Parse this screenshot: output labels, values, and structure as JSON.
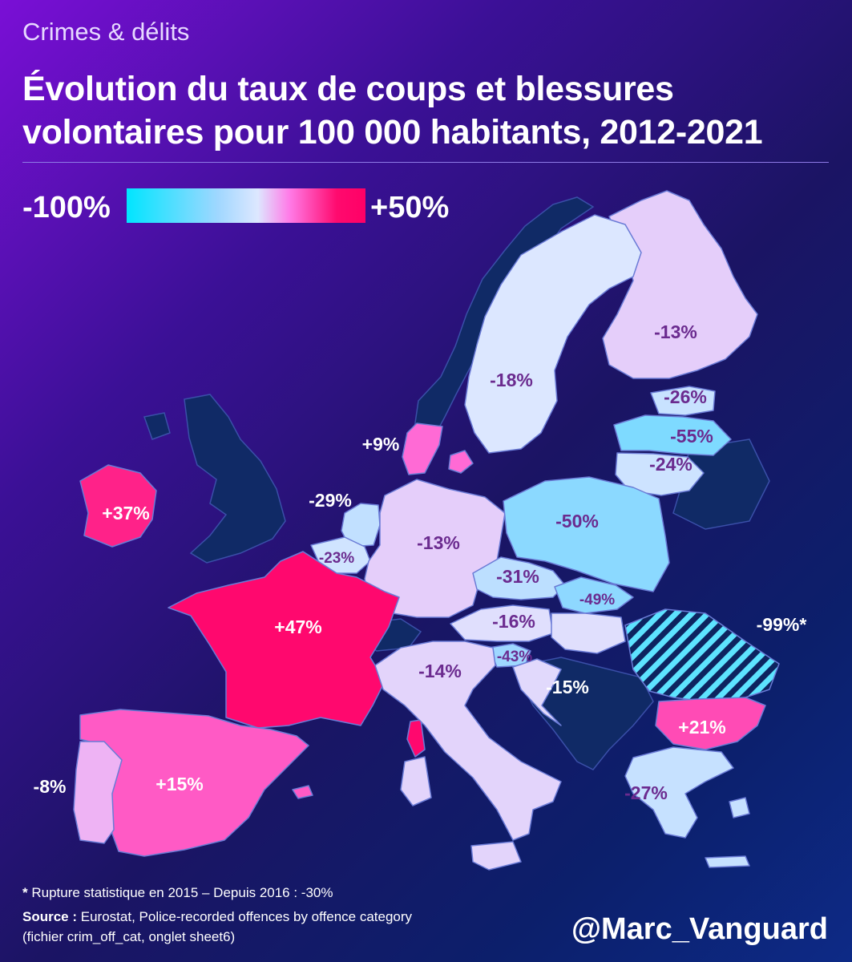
{
  "header": {
    "kicker": "Crimes & délits",
    "title": "Évolution du taux de coups et blessures volontaires pour 100 000 habitants, 2012-2021"
  },
  "legend": {
    "min_label": "-100%",
    "max_label": "+50%",
    "scale_min": -100,
    "scale_max": 50,
    "colors": [
      "#00e5ff",
      "#9fd7ff",
      "#dde7ff",
      "#ff7ce8",
      "#ff0066"
    ]
  },
  "colors": {
    "no_data": "#102a66",
    "outline": "#6a7bd6",
    "hatch_stripe": "#5de3ff",
    "hatch_bg": "#0d2460",
    "label_dark": "#6b2b8f",
    "label_light": "#ffffff"
  },
  "countries": [
    {
      "id": "finland",
      "name": "Finlande",
      "value": -13,
      "label": "-13%"
    },
    {
      "id": "sweden",
      "name": "Suède",
      "value": -18,
      "label": "-18%"
    },
    {
      "id": "estonia",
      "name": "Estonie",
      "value": -26,
      "label": "-26%"
    },
    {
      "id": "latvia",
      "name": "Lettonie",
      "value": -55,
      "label": "-55%"
    },
    {
      "id": "lithuania",
      "name": "Lituanie",
      "value": -24,
      "label": "-24%"
    },
    {
      "id": "denmark",
      "name": "Danemark",
      "value": 9,
      "label": "+9%"
    },
    {
      "id": "ireland",
      "name": "Irlande",
      "value": 37,
      "label": "+37%"
    },
    {
      "id": "netherlands",
      "name": "Pays-Bas",
      "value": -29,
      "label": "-29%"
    },
    {
      "id": "belgium",
      "name": "Belgique",
      "value": -23,
      "label": "-23%"
    },
    {
      "id": "germany",
      "name": "Allemagne",
      "value": -13,
      "label": "-13%"
    },
    {
      "id": "poland",
      "name": "Pologne",
      "value": -50,
      "label": "-50%"
    },
    {
      "id": "czechia",
      "name": "Tchéquie",
      "value": -31,
      "label": "-31%"
    },
    {
      "id": "slovakia",
      "name": "Slovaquie",
      "value": -49,
      "label": "-49%"
    },
    {
      "id": "austria",
      "name": "Autriche",
      "value": -16,
      "label": "-16%"
    },
    {
      "id": "slovenia",
      "name": "Slovénie",
      "value": -43,
      "label": "-43%"
    },
    {
      "id": "france",
      "name": "France",
      "value": 47,
      "label": "+47%"
    },
    {
      "id": "italy",
      "name": "Italie",
      "value": -14,
      "label": "-14%"
    },
    {
      "id": "croatia",
      "name": "Croatie",
      "value": -15,
      "label": "-15%"
    },
    {
      "id": "romania",
      "name": "Roumanie",
      "value": -99,
      "label": "-99%*"
    },
    {
      "id": "bulgaria",
      "name": "Bulgarie",
      "value": 21,
      "label": "+21%"
    },
    {
      "id": "greece",
      "name": "Grèce",
      "value": -27,
      "label": "-27%"
    },
    {
      "id": "spain",
      "name": "Espagne",
      "value": 15,
      "label": "+15%"
    },
    {
      "id": "portugal",
      "name": "Portugal",
      "value": -8,
      "label": "-8%"
    }
  ],
  "footer": {
    "footnote_mark": "*",
    "footnote": "Rupture statistique en 2015 – Depuis 2016 : -30%",
    "source_label": "Source :",
    "source_text": "Eurostat, Police-recorded offences by offence category",
    "source_detail": "(fichier crim_off_cat, onglet sheet6)",
    "signature": "@Marc_Vanguard"
  }
}
